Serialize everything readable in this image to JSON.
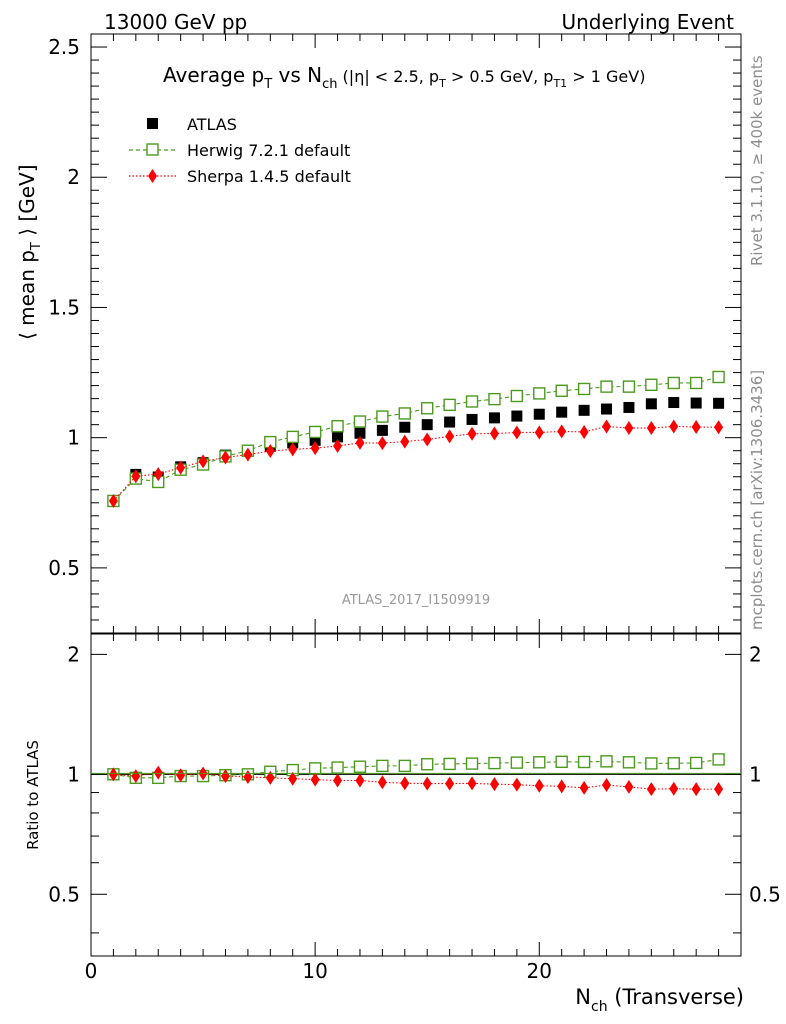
{
  "header": {
    "energy_label": "13000 GeV pp",
    "process_label": "Underlying Event"
  },
  "side_labels": {
    "rivet": "Rivet 3.1.10, ≥ 400k events",
    "mcplots": "mcplots.cern.ch [arXiv:1306.3436]"
  },
  "chart_data": {
    "type": "scatter",
    "title": "Average pT vs Nch (|η| < 2.5, pT > 0.5 GeV, pT1 > 1 GeV)",
    "title_parts": {
      "t1": "Average p",
      "t2": "T",
      "t3": " vs N",
      "t4": "ch",
      "t5": " (|η| < 2.5, p",
      "t6": "T",
      "t7": " > 0.5 GeV, p",
      "t8": "T1",
      "t9": " > 1 GeV)"
    },
    "analysis_label": "ATLAS_2017_I1509919",
    "ylabel": "⟨ mean pT ⟩ [GeV]",
    "ylabel_parts": {
      "a": "⟨ mean p",
      "b": "T",
      "c": " ⟩ [GeV]"
    },
    "ratio_ylabel": "Ratio to ATLAS",
    "xlabel": "Nch (Transverse)",
    "xlabel_parts": {
      "a": "N",
      "b": "ch",
      "c": " (Transverse)"
    },
    "xlim": [
      0,
      29
    ],
    "ylim": [
      0.25,
      2.55
    ],
    "ratio_ylim": [
      0.35,
      2.25
    ],
    "x_ticks": [
      "0",
      "10",
      "20"
    ],
    "y_ticks": [
      "0.5",
      "1",
      "1.5",
      "2",
      "2.5"
    ],
    "ratio_ticks": [
      "0.5",
      "1",
      "2"
    ],
    "x": [
      1,
      2,
      3,
      4,
      5,
      6,
      7,
      8,
      9,
      10,
      11,
      12,
      13,
      14,
      15,
      16,
      17,
      18,
      19,
      20,
      21,
      22,
      23,
      24,
      25,
      26,
      27,
      28
    ],
    "series": [
      {
        "name": "ATLAS",
        "color": "#000000",
        "marker": "square-filled",
        "values": [
          0.757,
          0.859,
          0.849,
          0.888,
          0.904,
          0.933,
          0.952,
          0.967,
          0.98,
          0.99,
          1.003,
          1.017,
          1.028,
          1.04,
          1.05,
          1.06,
          1.07,
          1.076,
          1.083,
          1.09,
          1.098,
          1.105,
          1.11,
          1.116,
          1.13,
          1.135,
          1.133,
          1.132
        ],
        "ratio": [
          1,
          1,
          1,
          1,
          1,
          1,
          1,
          1,
          1,
          1,
          1,
          1,
          1,
          1,
          1,
          1,
          1,
          1,
          1,
          1,
          1,
          1,
          1,
          1,
          1,
          1,
          1,
          1
        ]
      },
      {
        "name": "Herwig 7.2.1 default",
        "color": "#4a9a1e",
        "marker": "square-open",
        "values": [
          0.757,
          0.843,
          0.83,
          0.877,
          0.897,
          0.928,
          0.95,
          0.983,
          1.003,
          1.022,
          1.044,
          1.062,
          1.081,
          1.093,
          1.113,
          1.126,
          1.139,
          1.148,
          1.16,
          1.17,
          1.18,
          1.187,
          1.196,
          1.196,
          1.203,
          1.21,
          1.21,
          1.233
        ],
        "ratio": [
          1.0,
          0.98,
          0.98,
          0.99,
          0.99,
          0.995,
          1.0,
          1.015,
          1.025,
          1.035,
          1.04,
          1.045,
          1.05,
          1.05,
          1.06,
          1.062,
          1.064,
          1.067,
          1.07,
          1.072,
          1.075,
          1.074,
          1.078,
          1.072,
          1.065,
          1.066,
          1.068,
          1.09
        ]
      },
      {
        "name": "Sherpa 1.4.5 default",
        "color": "#ff0000",
        "marker": "diamond-filled",
        "values": [
          0.757,
          0.852,
          0.86,
          0.885,
          0.909,
          0.924,
          0.935,
          0.949,
          0.955,
          0.96,
          0.968,
          0.98,
          0.979,
          0.985,
          0.993,
          1.005,
          1.015,
          1.016,
          1.02,
          1.02,
          1.024,
          1.022,
          1.043,
          1.037,
          1.037,
          1.043,
          1.041,
          1.04
        ],
        "ratio": [
          1.0,
          0.99,
          1.01,
          0.995,
          1.005,
          0.99,
          0.985,
          0.98,
          0.975,
          0.97,
          0.965,
          0.965,
          0.955,
          0.95,
          0.948,
          0.948,
          0.949,
          0.945,
          0.942,
          0.936,
          0.933,
          0.925,
          0.94,
          0.93,
          0.918,
          0.92,
          0.918,
          0.918
        ]
      }
    ]
  }
}
